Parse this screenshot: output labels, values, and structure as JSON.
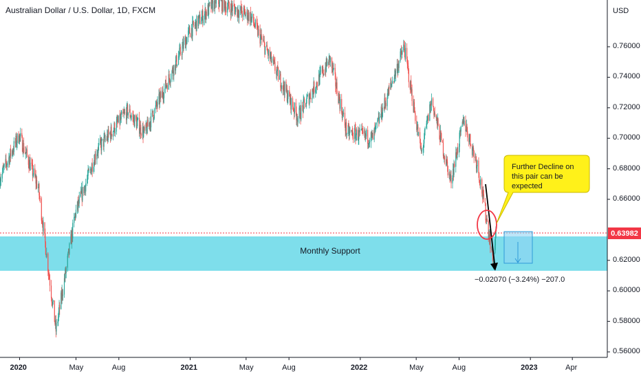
{
  "header": {
    "title": "Australian Dollar / U.S. Dollar, 1D, FXCM"
  },
  "price_axis": {
    "currency": "USD",
    "current_price": "0.63982"
  },
  "annotations": {
    "callout": "Further Decline on this pair can be expected",
    "zone": "Monthly Support",
    "measure": "−0.02070 (−3.24%) −207.0"
  },
  "colors": {
    "up": "#26a69a",
    "down": "#ef5350",
    "support_zone": "#5ed6e6",
    "callout_bg": "#fff11a",
    "price_line": "#f23645",
    "projection": "#8fd3f4"
  },
  "chart_data": {
    "type": "candlestick",
    "title": "Australian Dollar / U.S. Dollar, 1D, FXCM",
    "x_tick_labels": [
      "2020",
      "May",
      "Aug",
      "2021",
      "May",
      "Aug",
      "2022",
      "May",
      "Aug",
      "2023",
      "Apr"
    ],
    "y_tick_labels": [
      "0.76000",
      "0.74000",
      "0.72000",
      "0.70000",
      "0.68000",
      "0.66000",
      "0.62000",
      "0.60000",
      "0.58000",
      "0.56000"
    ],
    "ylim": [
      0.557,
      0.786
    ],
    "xlim": [
      "2019-11-20",
      "2023-06-15"
    ],
    "last_price": 0.63982,
    "support_zone": [
      0.613,
      0.636
    ],
    "path_key_points": [
      {
        "date": "2019-11-20",
        "close": 0.674
      },
      {
        "date": "2019-12-31",
        "close": 0.702
      },
      {
        "date": "2020-02-10",
        "close": 0.668
      },
      {
        "date": "2020-03-19",
        "close": 0.574
      },
      {
        "date": "2020-04-30",
        "close": 0.651
      },
      {
        "date": "2020-06-15",
        "close": 0.692
      },
      {
        "date": "2020-08-20",
        "close": 0.718
      },
      {
        "date": "2020-09-25",
        "close": 0.703
      },
      {
        "date": "2020-12-31",
        "close": 0.77
      },
      {
        "date": "2021-02-25",
        "close": 0.79
      },
      {
        "date": "2021-05-10",
        "close": 0.78
      },
      {
        "date": "2021-08-20",
        "close": 0.714
      },
      {
        "date": "2021-10-28",
        "close": 0.752
      },
      {
        "date": "2021-12-03",
        "close": 0.704
      },
      {
        "date": "2022-01-28",
        "close": 0.7
      },
      {
        "date": "2022-04-05",
        "close": 0.76
      },
      {
        "date": "2022-05-12",
        "close": 0.69
      },
      {
        "date": "2022-06-03",
        "close": 0.725
      },
      {
        "date": "2022-07-14",
        "close": 0.672
      },
      {
        "date": "2022-08-11",
        "close": 0.712
      },
      {
        "date": "2022-09-10",
        "close": 0.682
      },
      {
        "date": "2022-10-13",
        "close": 0.621
      },
      {
        "date": "2022-10-20",
        "close": 0.64
      }
    ],
    "projection": {
      "from": 0.63982,
      "change": -0.0207,
      "change_pct": -3.24,
      "pips": -207.0
    },
    "grid": false,
    "legend": "none"
  }
}
